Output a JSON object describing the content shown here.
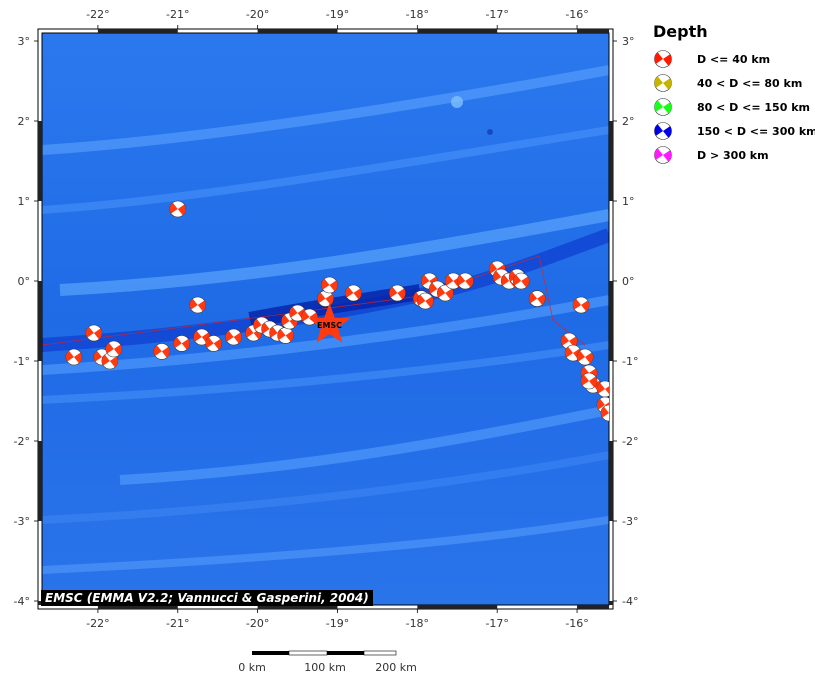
{
  "map": {
    "x_ticks": [
      "-22°",
      "-21°",
      "-20°",
      "-19°",
      "-18°",
      "-17°",
      "-16°"
    ],
    "y_ticks": [
      "3°",
      "2°",
      "1°",
      "0°",
      "-1°",
      "-2°",
      "-3°",
      "-4°"
    ],
    "lon_range": [
      -22.7,
      -15.6
    ],
    "lat_range": [
      -4.05,
      3.1
    ],
    "events": [
      {
        "lon": -22.3,
        "lat": -0.95
      },
      {
        "lon": -22.05,
        "lat": -0.65
      },
      {
        "lon": -21.95,
        "lat": -0.95
      },
      {
        "lon": -21.85,
        "lat": -1.0
      },
      {
        "lon": -21.8,
        "lat": -0.85
      },
      {
        "lon": -21.2,
        "lat": -0.88
      },
      {
        "lon": -20.95,
        "lat": -0.78
      },
      {
        "lon": -20.75,
        "lat": -0.3
      },
      {
        "lon": -20.7,
        "lat": -0.7
      },
      {
        "lon": -20.55,
        "lat": -0.78
      },
      {
        "lon": -20.3,
        "lat": -0.7
      },
      {
        "lon": -20.05,
        "lat": -0.65
      },
      {
        "lon": -19.95,
        "lat": -0.55
      },
      {
        "lon": -19.85,
        "lat": -0.6
      },
      {
        "lon": -19.75,
        "lat": -0.65
      },
      {
        "lon": -19.65,
        "lat": -0.68
      },
      {
        "lon": -19.6,
        "lat": -0.5
      },
      {
        "lon": -19.5,
        "lat": -0.4
      },
      {
        "lon": -19.35,
        "lat": -0.45
      },
      {
        "lon": -19.15,
        "lat": -0.22
      },
      {
        "lon": -19.1,
        "lat": -0.05
      },
      {
        "lon": -18.8,
        "lat": -0.15
      },
      {
        "lon": -18.25,
        "lat": -0.15
      },
      {
        "lon": -17.95,
        "lat": -0.22
      },
      {
        "lon": -17.9,
        "lat": -0.25
      },
      {
        "lon": -17.85,
        "lat": 0.0
      },
      {
        "lon": -17.75,
        "lat": -0.1
      },
      {
        "lon": -17.65,
        "lat": -0.15
      },
      {
        "lon": -17.55,
        "lat": 0.0
      },
      {
        "lon": -17.4,
        "lat": 0.0
      },
      {
        "lon": -17.0,
        "lat": 0.15
      },
      {
        "lon": -16.95,
        "lat": 0.05
      },
      {
        "lon": -16.85,
        "lat": 0.0
      },
      {
        "lon": -16.75,
        "lat": 0.05
      },
      {
        "lon": -16.7,
        "lat": 0.0
      },
      {
        "lon": -16.5,
        "lat": -0.22
      },
      {
        "lon": -16.1,
        "lat": -0.75
      },
      {
        "lon": -16.05,
        "lat": -0.9
      },
      {
        "lon": -15.95,
        "lat": -0.3
      },
      {
        "lon": -15.9,
        "lat": -0.95
      },
      {
        "lon": -15.85,
        "lat": -1.15
      },
      {
        "lon": -15.8,
        "lat": -1.3
      },
      {
        "lon": -15.85,
        "lat": -1.25
      },
      {
        "lon": -15.65,
        "lat": -1.35
      },
      {
        "lon": -15.65,
        "lat": -1.55
      },
      {
        "lon": -15.6,
        "lat": -1.65
      },
      {
        "lon": -21.0,
        "lat": 0.9
      }
    ],
    "star": {
      "lon": -19.1,
      "lat": -0.55,
      "label": "EMSC"
    }
  },
  "legend": {
    "title": "Depth",
    "items": [
      {
        "label": "D <= 40 km",
        "color": "#ff1a00"
      },
      {
        "label": "40 < D <= 80 km",
        "color": "#c8b400"
      },
      {
        "label": "80 < D <= 150 km",
        "color": "#1aff1a"
      },
      {
        "label": "150 < D <= 300 km",
        "color": "#0000e6"
      },
      {
        "label": "D > 300 km",
        "color": "#ff1aff"
      }
    ]
  },
  "credit": "EMSC (EMMA V2.2; Vannucci & Gasperini, 2004)",
  "scalebar": {
    "labels": [
      "0 km",
      "100 km",
      "200 km"
    ]
  },
  "colors": {
    "ocean": "#1f6fe8",
    "trench": "#0a2fc0",
    "event": "#ff3a10",
    "star": "#ff3a10"
  }
}
